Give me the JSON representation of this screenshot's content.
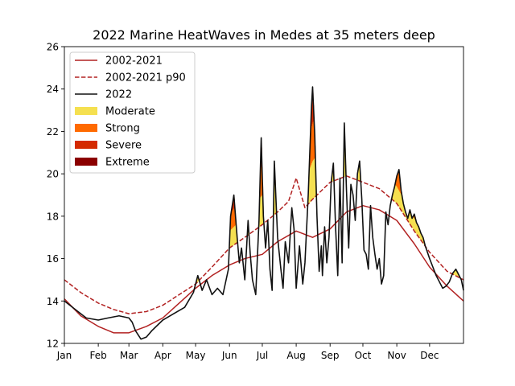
{
  "chart_data": {
    "type": "line",
    "title": "2022 Marine HeatWaves in Medes at 35 meters deep",
    "xlabel": "",
    "ylabel": "",
    "xlim": [
      0,
      365
    ],
    "ylim": [
      12,
      26
    ],
    "yticks": [
      12,
      14,
      16,
      18,
      20,
      22,
      24,
      26
    ],
    "xticks": [
      {
        "label": "Jan",
        "day": 0
      },
      {
        "label": "Feb",
        "day": 31
      },
      {
        "label": "Mar",
        "day": 59
      },
      {
        "label": "Apr",
        "day": 90
      },
      {
        "label": "May",
        "day": 120
      },
      {
        "label": "Jun",
        "day": 151
      },
      {
        "label": "Jul",
        "day": 181
      },
      {
        "label": "Aug",
        "day": 212
      },
      {
        "label": "Sep",
        "day": 243
      },
      {
        "label": "Oct",
        "day": 273
      },
      {
        "label": "Nov",
        "day": 304
      },
      {
        "label": "Dec",
        "day": 334
      }
    ],
    "grid": false,
    "legend_position": "upper-left",
    "legend": [
      {
        "label": "2002-2021",
        "kind": "line",
        "color": "#b22222",
        "dash": "solid"
      },
      {
        "label": "2002-2021 p90",
        "kind": "line",
        "color": "#b22222",
        "dash": "dashed"
      },
      {
        "label": "2022",
        "kind": "line",
        "color": "#111111",
        "dash": "solid"
      },
      {
        "label": "Moderate",
        "kind": "patch",
        "color": "#f5e050"
      },
      {
        "label": "Strong",
        "kind": "patch",
        "color": "#ff6a00"
      },
      {
        "label": "Severe",
        "kind": "patch",
        "color": "#d42a00"
      },
      {
        "label": "Extreme",
        "kind": "patch",
        "color": "#8b0000"
      }
    ],
    "series": [
      {
        "name": "2002-2021",
        "color": "#b22222",
        "dash": "solid",
        "x": [
          0,
          15,
          31,
          45,
          59,
          75,
          90,
          105,
          120,
          135,
          151,
          165,
          181,
          195,
          212,
          227,
          243,
          258,
          273,
          288,
          304,
          320,
          334,
          350,
          365
        ],
        "y": [
          14.1,
          13.3,
          12.8,
          12.5,
          12.5,
          12.8,
          13.2,
          13.9,
          14.6,
          15.2,
          15.7,
          16.0,
          16.2,
          16.8,
          17.3,
          17.0,
          17.4,
          18.2,
          18.5,
          18.3,
          17.8,
          16.7,
          15.6,
          14.7,
          14.0
        ]
      },
      {
        "name": "2002-2021 p90",
        "color": "#b22222",
        "dash": "dashed",
        "x": [
          0,
          15,
          31,
          45,
          59,
          75,
          90,
          105,
          120,
          135,
          151,
          165,
          181,
          195,
          205,
          212,
          220,
          227,
          235,
          243,
          258,
          273,
          288,
          304,
          320,
          334,
          350,
          365
        ],
        "y": [
          15.0,
          14.4,
          13.9,
          13.6,
          13.4,
          13.5,
          13.8,
          14.3,
          14.8,
          15.6,
          16.5,
          17.0,
          17.6,
          18.2,
          18.7,
          19.8,
          18.4,
          18.8,
          19.2,
          19.6,
          19.9,
          19.6,
          19.3,
          18.6,
          17.3,
          16.3,
          15.4,
          15.0
        ]
      },
      {
        "name": "2022",
        "color": "#111111",
        "dash": "solid",
        "x": [
          0,
          10,
          20,
          31,
          40,
          50,
          59,
          62,
          65,
          70,
          75,
          80,
          90,
          100,
          110,
          118,
          122,
          126,
          130,
          135,
          140,
          145,
          150,
          152,
          155,
          158,
          160,
          162,
          165,
          168,
          170,
          172,
          175,
          178,
          180,
          182,
          184,
          186,
          188,
          190,
          192,
          195,
          198,
          200,
          202,
          205,
          208,
          210,
          212,
          215,
          218,
          220,
          223,
          226,
          227,
          229,
          231,
          233,
          235,
          236,
          238,
          240,
          242,
          244,
          246,
          248,
          250,
          252,
          254,
          256,
          258,
          260,
          262,
          264,
          266,
          268,
          270,
          272,
          274,
          276,
          278,
          280,
          282,
          284,
          286,
          288,
          290,
          292,
          294,
          296,
          298,
          300,
          302,
          304,
          306,
          308,
          310,
          312,
          314,
          316,
          318,
          320,
          322,
          324,
          326,
          328,
          330,
          332,
          334,
          337,
          340,
          343,
          346,
          349,
          352,
          355,
          358,
          361,
          363,
          365
        ],
        "y": [
          14.0,
          13.6,
          13.2,
          13.1,
          13.2,
          13.3,
          13.2,
          13.0,
          12.6,
          12.2,
          12.3,
          12.6,
          13.1,
          13.4,
          13.7,
          14.4,
          15.2,
          14.5,
          15.0,
          14.3,
          14.6,
          14.3,
          15.5,
          18.0,
          19.0,
          17.0,
          15.8,
          16.5,
          15.0,
          17.8,
          16.2,
          15.0,
          14.3,
          17.8,
          21.7,
          18.0,
          16.5,
          17.8,
          15.5,
          14.5,
          20.6,
          17.0,
          15.5,
          14.6,
          16.8,
          15.8,
          18.4,
          17.4,
          14.6,
          16.6,
          14.8,
          15.8,
          19.0,
          23.2,
          24.1,
          21.8,
          18.0,
          15.4,
          16.6,
          15.2,
          17.5,
          15.8,
          17.0,
          19.6,
          20.5,
          17.5,
          15.2,
          19.8,
          15.8,
          22.4,
          19.2,
          16.5,
          19.5,
          19.0,
          17.8,
          20.0,
          20.6,
          18.8,
          16.4,
          16.2,
          15.5,
          18.5,
          17.0,
          16.2,
          15.5,
          16.0,
          14.8,
          15.2,
          18.2,
          17.6,
          18.5,
          19.0,
          19.4,
          19.9,
          20.2,
          19.2,
          18.6,
          18.2,
          17.9,
          18.3,
          17.9,
          18.1,
          17.7,
          17.5,
          17.2,
          17.0,
          16.6,
          16.3,
          16.0,
          15.6,
          15.2,
          14.9,
          14.6,
          14.7,
          14.9,
          15.3,
          15.5,
          15.2,
          15.0,
          14.5
        ]
      }
    ],
    "heatwave_fill": {
      "moderate": "#f5e050",
      "strong": "#ff6a00",
      "severe": "#d42a00",
      "extreme": "#8b0000"
    }
  }
}
